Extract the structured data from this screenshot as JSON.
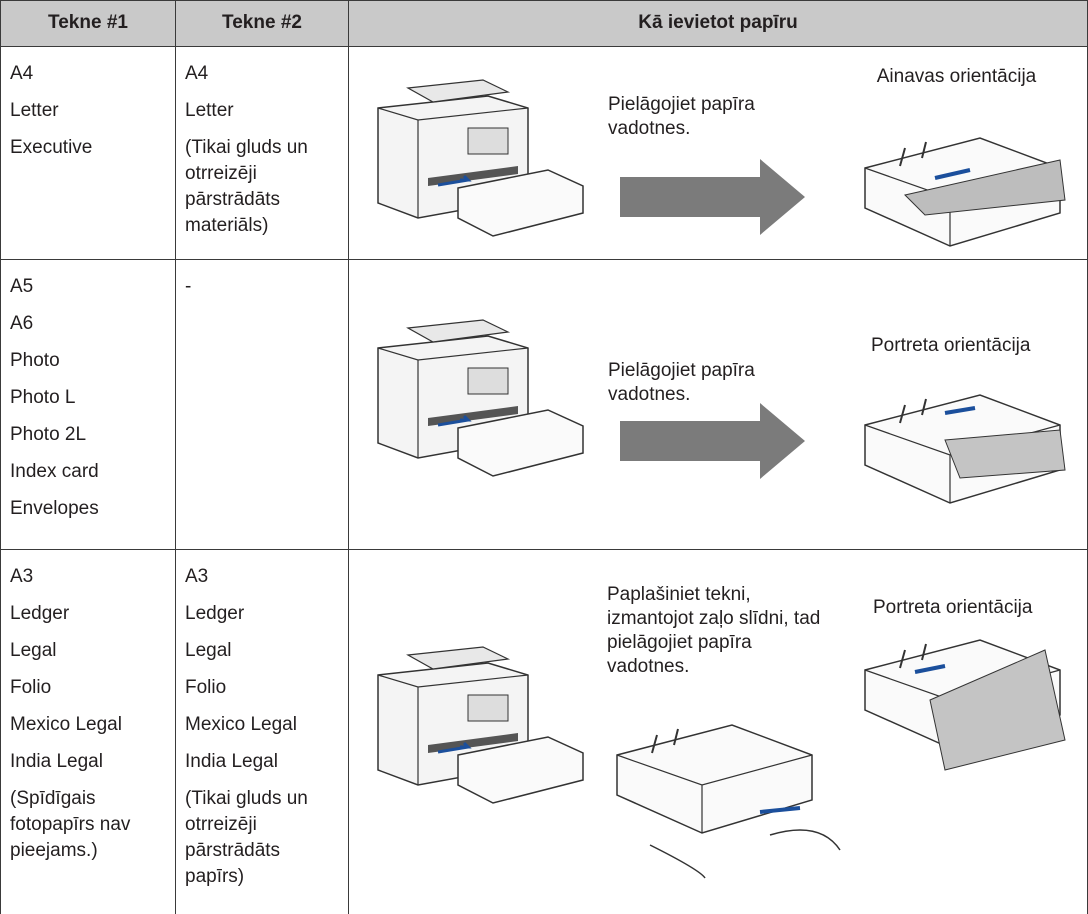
{
  "table": {
    "header": [
      "Tekne #1",
      "Tekne #2",
      "Kā ievietot papīru"
    ],
    "rows": [
      {
        "tray1": [
          "A4",
          "Letter",
          "Executive"
        ],
        "tray2": [
          "A4",
          "Letter",
          "(Tikai gluds un otrreizēji pārstrādāts materiāls)"
        ],
        "step": "Pielāgojiet papīra vadotnes.",
        "orientation": "Ainavas orientācija"
      },
      {
        "tray1": [
          "A5",
          "A6",
          "Photo",
          "Photo L",
          "Photo 2L",
          "Index card",
          "Envelopes"
        ],
        "tray2": [
          "-"
        ],
        "step": "Pielāgojiet papīra vadotnes.",
        "orientation": "Portreta orientācija"
      },
      {
        "tray1": [
          "A3",
          "Ledger",
          "Legal",
          "Folio",
          "Mexico Legal",
          "India Legal",
          "(Spīdīgais fotopapīrs nav pieejams.)"
        ],
        "tray2": [
          "A3",
          "Ledger",
          "Legal",
          "Folio",
          "Mexico Legal",
          "India Legal",
          "(Tikai gluds un otrreizēji pārstrādāts papīrs)"
        ],
        "step": "Paplašiniet tekni, izmantojot zaļo slīdni, tad pielāgojiet papīra vadotnes.",
        "orientation": "Portreta orientācija"
      }
    ]
  }
}
